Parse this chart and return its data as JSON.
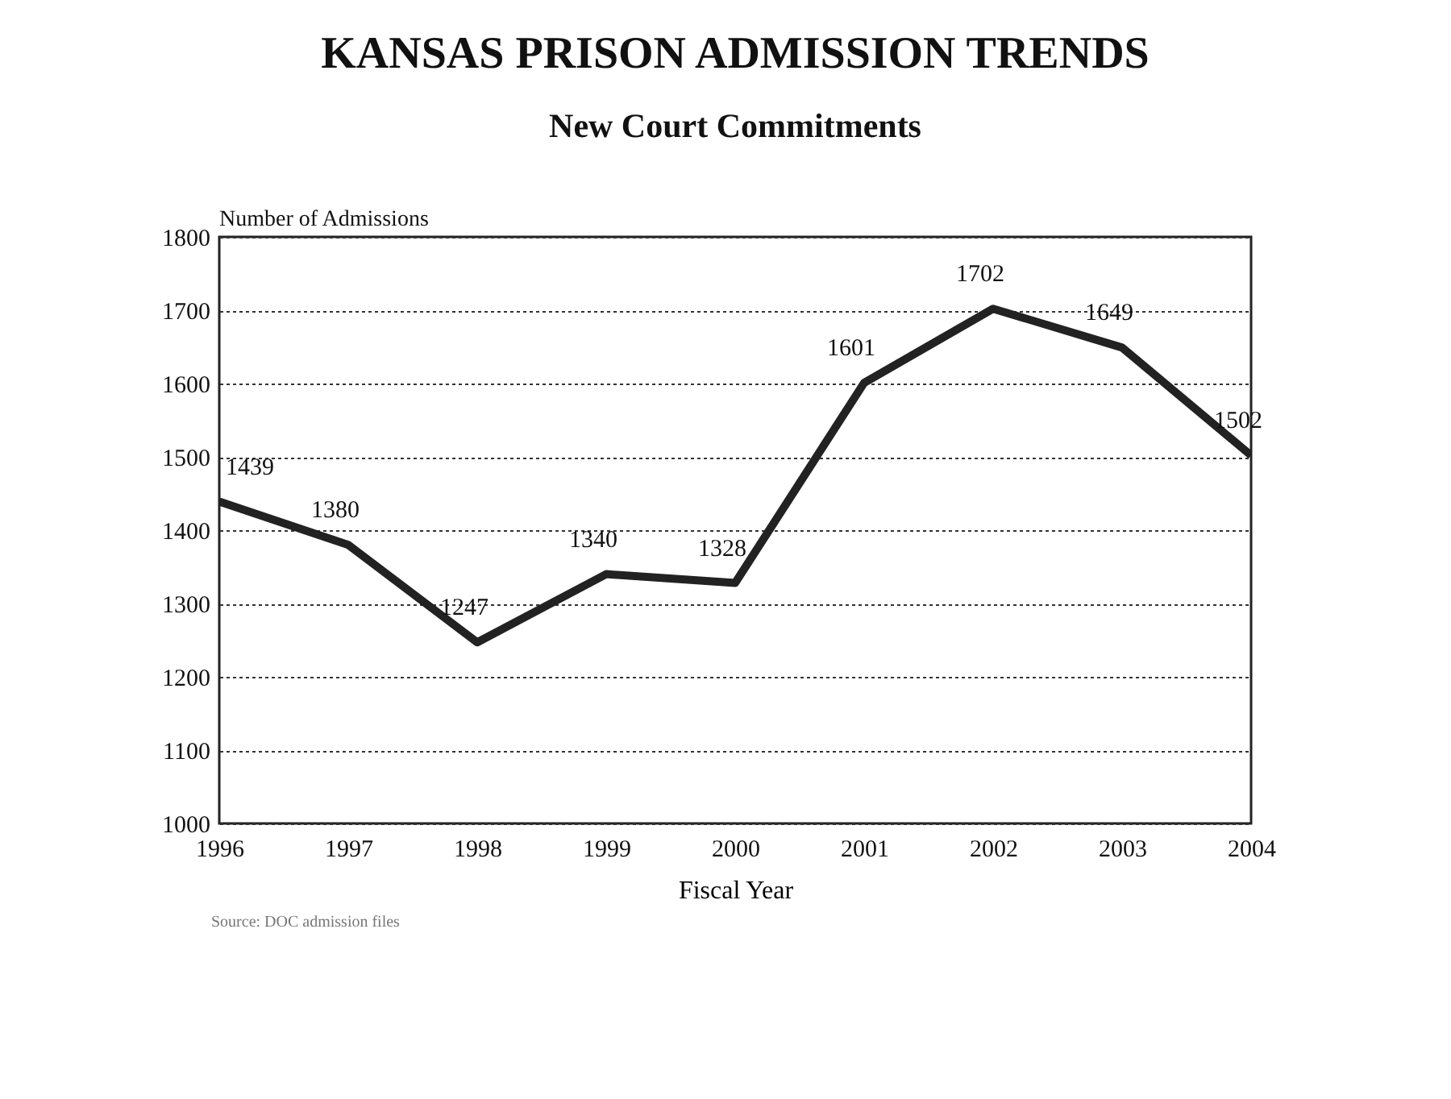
{
  "chart_data": {
    "type": "line",
    "title": "KANSAS PRISON ADMISSION TRENDS",
    "subtitle": "New Court Commitments",
    "xlabel": "Fiscal Year",
    "ylabel": "Number of Admissions",
    "categories": [
      "1996",
      "1997",
      "1998",
      "1999",
      "2000",
      "2001",
      "2002",
      "2003",
      "2004"
    ],
    "series": [
      {
        "color": "#222222",
        "values": [
          1439,
          1380,
          1247,
          1340,
          1328,
          1601,
          1702,
          1649,
          1502
        ]
      }
    ],
    "ylim": [
      1000,
      1800
    ],
    "yticks": [
      1000,
      1100,
      1200,
      1300,
      1400,
      1500,
      1600,
      1700,
      1800
    ],
    "grid": "y",
    "data_labels": true,
    "marker": "none",
    "line_style": "solid",
    "legend": false,
    "annotations": [
      "Source: DOC admission files"
    ]
  }
}
